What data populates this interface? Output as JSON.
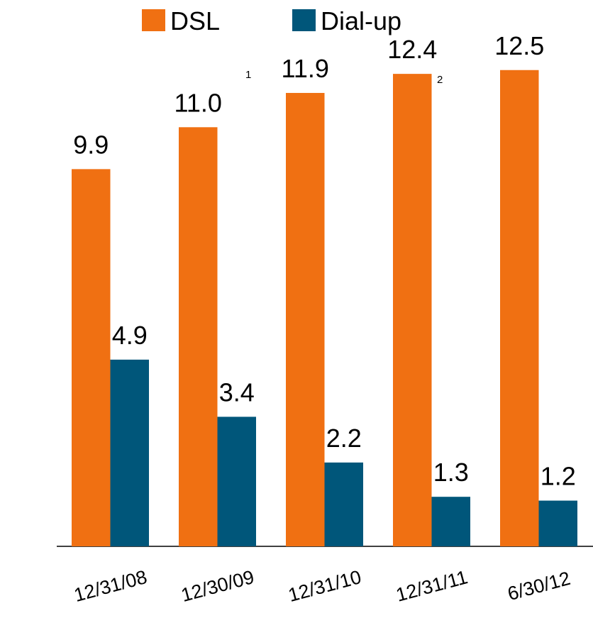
{
  "chart_data": {
    "type": "bar",
    "categories": [
      "12/31/08",
      "12/30/09",
      "12/31/10",
      "12/31/11",
      "6/30/12"
    ],
    "series": [
      {
        "name": "DSL",
        "color": "#f07012",
        "values": [
          9.9,
          11.0,
          11.9,
          12.4,
          12.5
        ],
        "value_labels": [
          "9.9",
          "11.0",
          "11.9",
          "12.4",
          "12.5"
        ]
      },
      {
        "name": "Dial-up",
        "color": "#00567a",
        "values": [
          4.9,
          3.4,
          2.2,
          1.3,
          1.2
        ]
      }
    ],
    "annotations": [
      "1",
      "2"
    ],
    "legend": "top"
  }
}
